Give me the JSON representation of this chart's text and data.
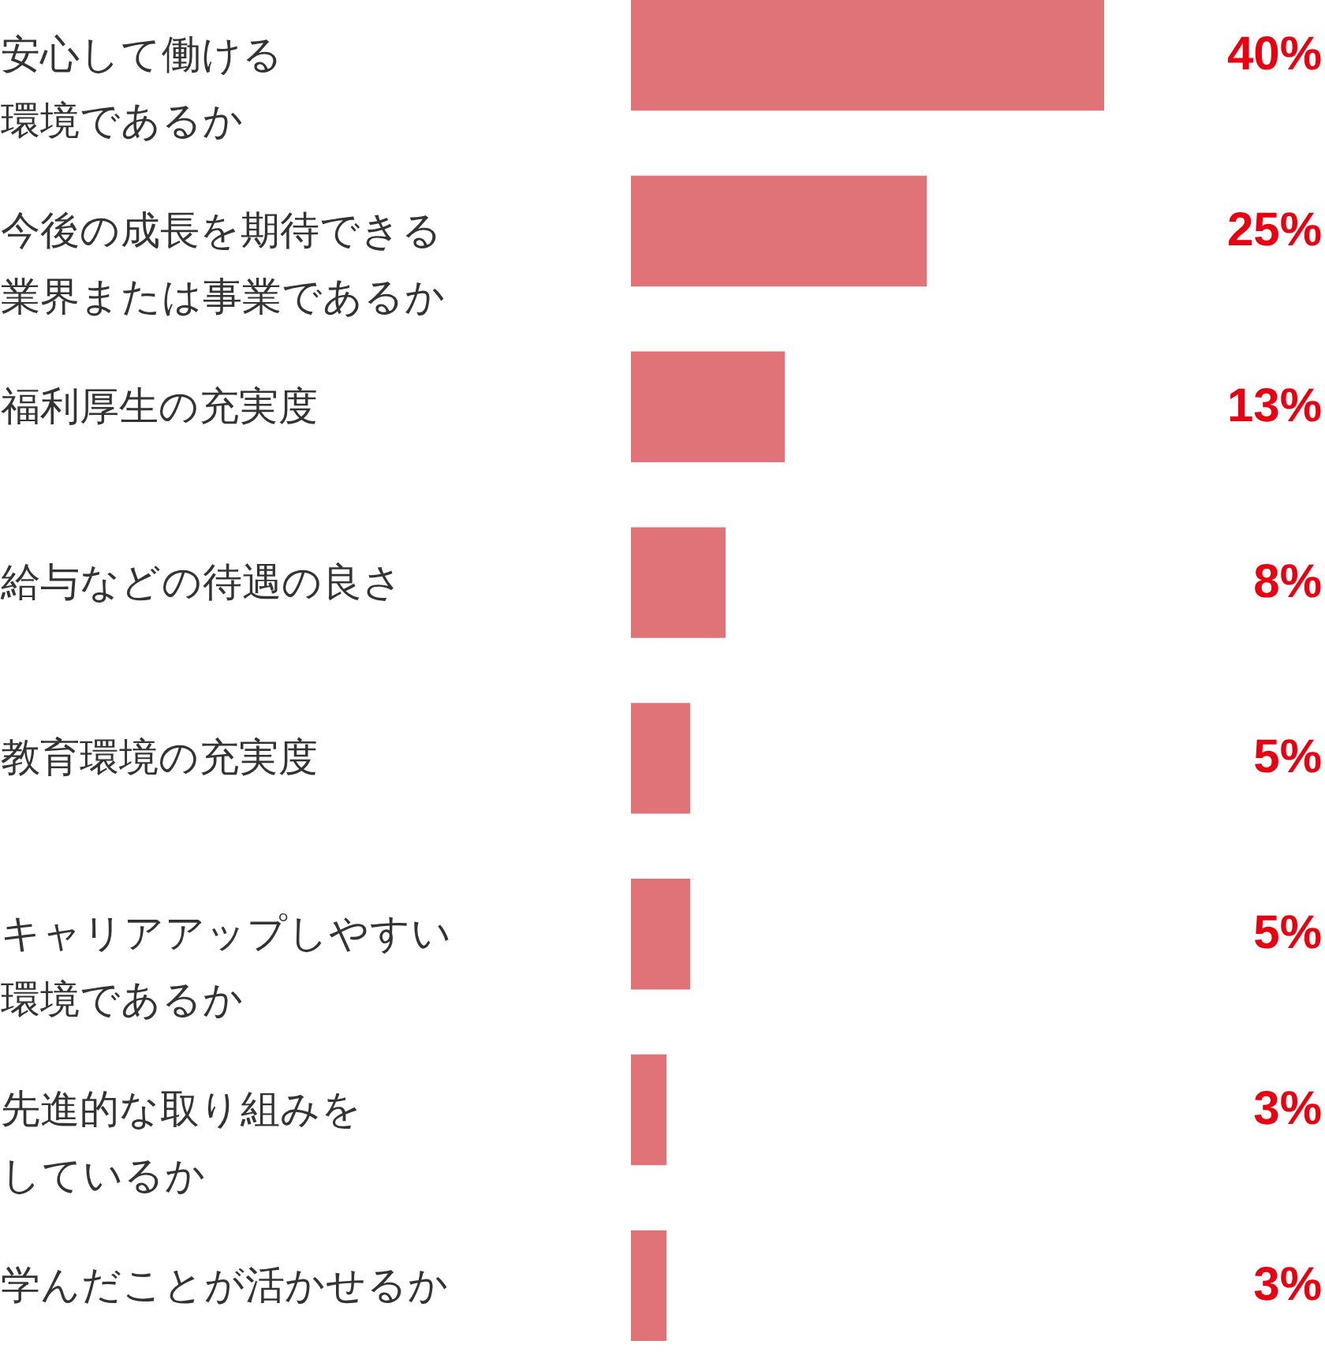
{
  "chart_data": {
    "type": "bar",
    "orientation": "horizontal",
    "categories": [
      "安心して働ける環境であるか",
      "今後の成長を期待できる業界または事業であるか",
      "福利厚生の充実度",
      "給与などの待遇の良さ",
      "教育環境の充実度",
      "キャリアアップしやすい環境であるか",
      "先進的な取り組みをしているか",
      "学んだことが活かせるか"
    ],
    "values": [
      40,
      25,
      13,
      8,
      5,
      5,
      3,
      3
    ],
    "color": "#e07378",
    "value_labels": [
      "40%",
      "25%",
      "13%",
      "8%",
      "5%",
      "5%",
      "3%",
      "3%"
    ]
  }
}
